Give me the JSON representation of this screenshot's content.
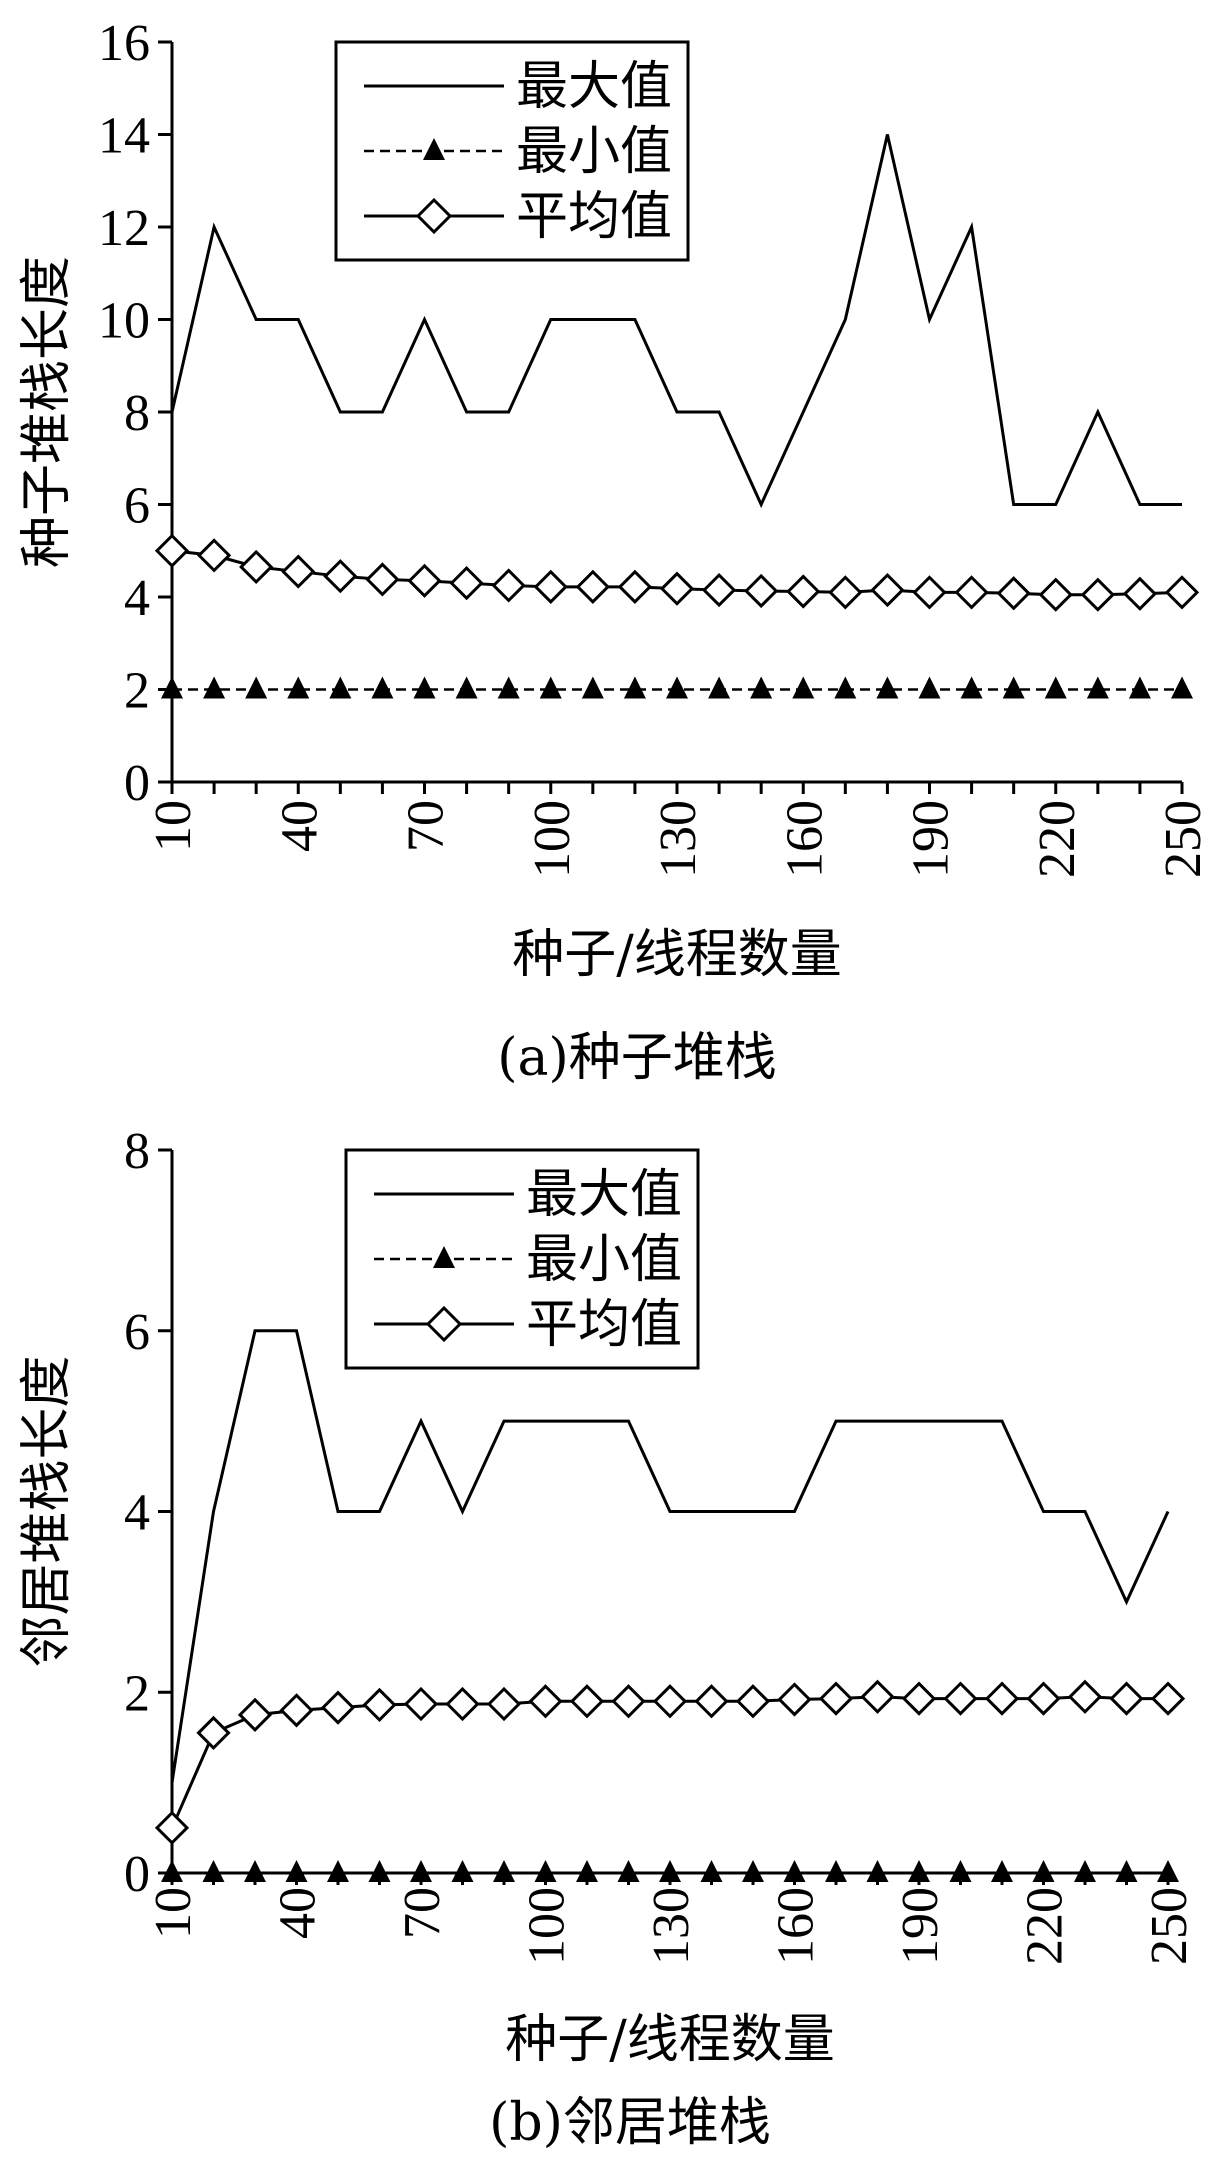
{
  "chart_data": [
    {
      "type": "line",
      "caption": "(a)种子堆栈",
      "xlabel": "种子/线程数量",
      "ylabel": "种子堆栈长度",
      "xlim": [
        10,
        250
      ],
      "ylim": [
        0,
        16
      ],
      "xticks": [
        10,
        40,
        70,
        100,
        130,
        160,
        190,
        220,
        250
      ],
      "yticks": [
        0,
        2,
        4,
        6,
        8,
        10,
        12,
        14,
        16
      ],
      "legend_position": "top-left",
      "grid": false,
      "x": [
        10,
        20,
        30,
        40,
        50,
        60,
        70,
        80,
        90,
        100,
        110,
        120,
        130,
        140,
        150,
        160,
        170,
        180,
        190,
        200,
        210,
        220,
        230,
        240,
        250
      ],
      "series": [
        {
          "name": "最大值",
          "style": "solid",
          "marker": "none",
          "values": [
            8,
            12,
            10,
            10,
            8,
            8,
            10,
            8,
            8,
            10,
            10,
            10,
            8,
            8,
            6,
            8,
            10,
            14,
            10,
            12,
            6,
            6,
            8,
            6,
            6
          ]
        },
        {
          "name": "最小值",
          "style": "dashed",
          "marker": "triangle",
          "values": [
            2,
            2,
            2,
            2,
            2,
            2,
            2,
            2,
            2,
            2,
            2,
            2,
            2,
            2,
            2,
            2,
            2,
            2,
            2,
            2,
            2,
            2,
            2,
            2,
            2
          ]
        },
        {
          "name": "平均值",
          "style": "solid",
          "marker": "diamond",
          "values": [
            5.0,
            4.9,
            4.65,
            4.55,
            4.45,
            4.38,
            4.35,
            4.3,
            4.25,
            4.22,
            4.22,
            4.22,
            4.18,
            4.15,
            4.13,
            4.12,
            4.1,
            4.15,
            4.1,
            4.1,
            4.08,
            4.05,
            4.05,
            4.07,
            4.1
          ]
        }
      ]
    },
    {
      "type": "line",
      "caption": "(b)邻居堆栈",
      "xlabel": "种子/线程数量",
      "ylabel": "邻居堆栈长度",
      "xlim": [
        10,
        250
      ],
      "ylim": [
        0,
        8
      ],
      "xticks": [
        10,
        40,
        70,
        100,
        130,
        160,
        190,
        220,
        250
      ],
      "yticks": [
        0,
        2,
        4,
        6,
        8
      ],
      "legend_position": "top-left",
      "grid": false,
      "x": [
        10,
        20,
        30,
        40,
        50,
        60,
        70,
        80,
        90,
        100,
        110,
        120,
        130,
        140,
        150,
        160,
        170,
        180,
        190,
        200,
        210,
        220,
        230,
        240,
        250
      ],
      "series": [
        {
          "name": "最大值",
          "style": "solid",
          "marker": "none",
          "values": [
            1,
            4,
            6,
            6,
            4,
            4,
            5,
            4,
            5,
            5,
            5,
            5,
            4,
            4,
            4,
            4,
            5,
            5,
            5,
            5,
            5,
            4,
            4,
            3,
            4
          ]
        },
        {
          "name": "最小值",
          "style": "dashed",
          "marker": "triangle",
          "values": [
            0,
            0,
            0,
            0,
            0,
            0,
            0,
            0,
            0,
            0,
            0,
            0,
            0,
            0,
            0,
            0,
            0,
            0,
            0,
            0,
            0,
            0,
            0,
            0,
            0
          ]
        },
        {
          "name": "平均值",
          "style": "solid",
          "marker": "diamond",
          "values": [
            0.5,
            1.55,
            1.75,
            1.8,
            1.83,
            1.86,
            1.87,
            1.87,
            1.87,
            1.9,
            1.9,
            1.9,
            1.9,
            1.9,
            1.9,
            1.92,
            1.93,
            1.95,
            1.93,
            1.93,
            1.93,
            1.93,
            1.95,
            1.93,
            1.93
          ]
        }
      ]
    }
  ]
}
